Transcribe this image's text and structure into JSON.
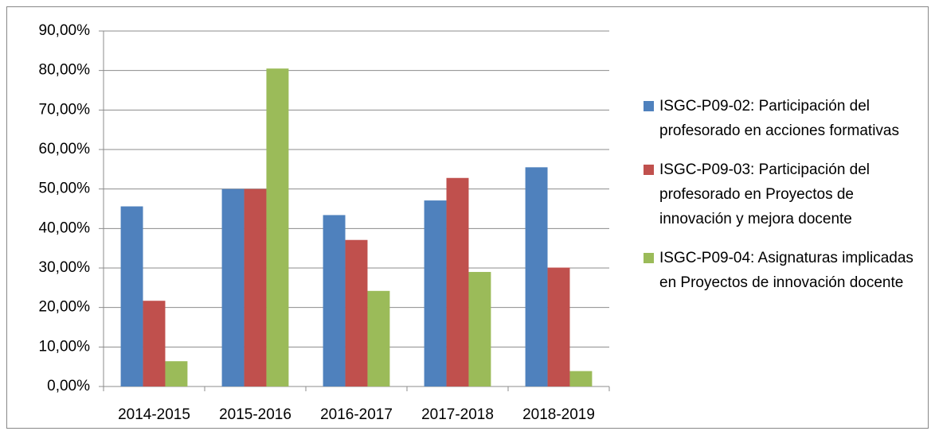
{
  "chart_data": {
    "type": "bar",
    "categories": [
      "2014-2015",
      "2015-2016",
      "2016-2017",
      "2017-2018",
      "2018-2019"
    ],
    "series": [
      {
        "name": "ISGC-P09-02: Participación del profesorado en acciones formativas",
        "color": "#4f81bd",
        "values": [
          45.6,
          50,
          43.4,
          47.1,
          55.5
        ]
      },
      {
        "name": "ISGC-P09-03: Participación del profesorado en Proyectos de innovación y mejora docente",
        "color": "#c0504d",
        "values": [
          21.7,
          50,
          37.1,
          52.8,
          30.1
        ]
      },
      {
        "name": "ISGC-P09-04: Asignaturas implicadas en Proyectos de innovación docente",
        "color": "#9bbb59",
        "values": [
          6.4,
          80.5,
          24.2,
          29,
          3.9
        ]
      }
    ],
    "ylim": [
      0,
      90
    ],
    "yticks": [
      {
        "value": 0,
        "label": "0,00%"
      },
      {
        "value": 10,
        "label": "10,00%"
      },
      {
        "value": 20,
        "label": "20,00%"
      },
      {
        "value": 30,
        "label": "30,00%"
      },
      {
        "value": 40,
        "label": "40,00%"
      },
      {
        "value": 50,
        "label": "50,00%"
      },
      {
        "value": 60,
        "label": "60,00%"
      },
      {
        "value": 70,
        "label": "70,00%"
      },
      {
        "value": 80,
        "label": "80,00%"
      },
      {
        "value": 90,
        "label": "90,00%"
      }
    ],
    "grid": true,
    "legend": "right"
  }
}
